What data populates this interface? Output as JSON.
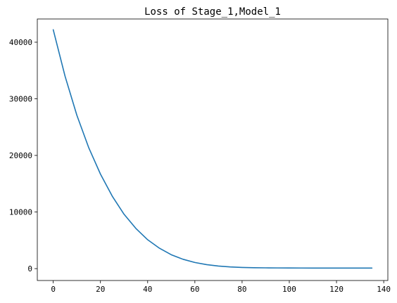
{
  "chart_data": {
    "type": "line",
    "title": "Loss of Stage_1,Model_1",
    "xlabel": "",
    "ylabel": "",
    "xlim": [
      -6.75,
      141.75
    ],
    "ylim": [
      -2100,
      44100
    ],
    "x_ticks": [
      0,
      20,
      40,
      60,
      80,
      100,
      120,
      140
    ],
    "x_tick_labels": [
      "0",
      "20",
      "40",
      "60",
      "80",
      "100",
      "120",
      "140"
    ],
    "y_ticks": [
      0,
      10000,
      20000,
      30000,
      40000
    ],
    "y_tick_labels": [
      "0",
      "10000",
      "20000",
      "30000",
      "40000"
    ],
    "grid": false,
    "series": [
      {
        "color": "#1f77b4",
        "x": [
          0,
          5,
          10,
          15,
          20,
          25,
          30,
          35,
          40,
          45,
          50,
          55,
          60,
          65,
          70,
          75,
          80,
          85,
          90,
          95,
          100,
          105,
          110,
          115,
          120,
          125,
          130,
          135
        ],
        "values": [
          42200,
          34000,
          27100,
          21400,
          16700,
          12800,
          9600,
          7100,
          5100,
          3600,
          2450,
          1650,
          1080,
          700,
          450,
          300,
          210,
          160,
          135,
          120,
          110,
          105,
          102,
          100,
          100,
          100,
          100,
          100
        ]
      }
    ]
  }
}
